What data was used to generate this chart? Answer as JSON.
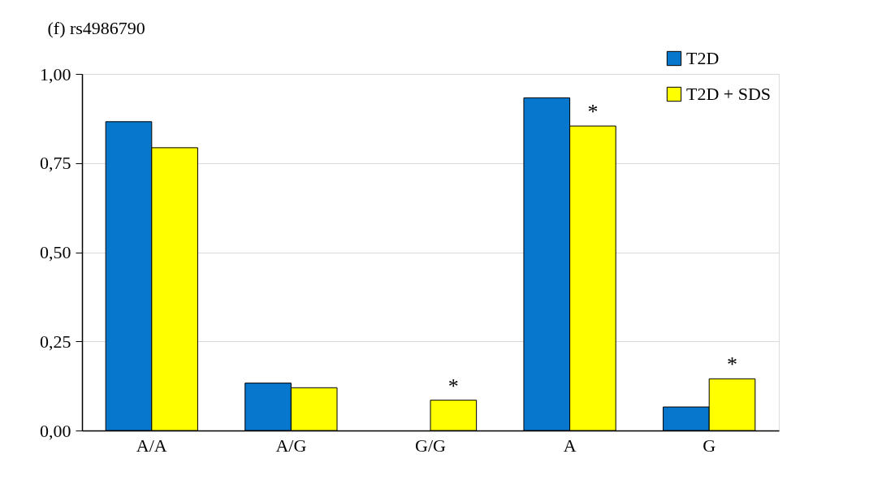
{
  "chart_data": {
    "type": "bar",
    "title": "(f) rs4986790",
    "categories": [
      "A/A",
      "A/G",
      "G/G",
      "A",
      "G"
    ],
    "series": [
      {
        "name": "T2D",
        "color": "#0677cc",
        "values": [
          0.866,
          0.133,
          null,
          0.933,
          0.066
        ]
      },
      {
        "name": "T2D + SDS",
        "color": "#ffff00",
        "values": [
          0.793,
          0.12,
          0.085,
          0.854,
          0.145
        ]
      }
    ],
    "ylim": [
      0,
      1
    ],
    "yticks": [
      {
        "value": 0,
        "label": "0,00"
      },
      {
        "value": 0.25,
        "label": "0,25"
      },
      {
        "value": 0.5,
        "label": "0,50"
      },
      {
        "value": 0.75,
        "label": "0,75"
      },
      {
        "value": 1,
        "label": "1,00"
      }
    ],
    "grid": "y",
    "legend": "top right",
    "annotations": [
      {
        "text": "*",
        "x": "G/G",
        "y": 0.085
      },
      {
        "text": "*",
        "x": "A",
        "y": 0.854
      },
      {
        "text": "*",
        "x": "G",
        "y": 0.145
      }
    ]
  }
}
